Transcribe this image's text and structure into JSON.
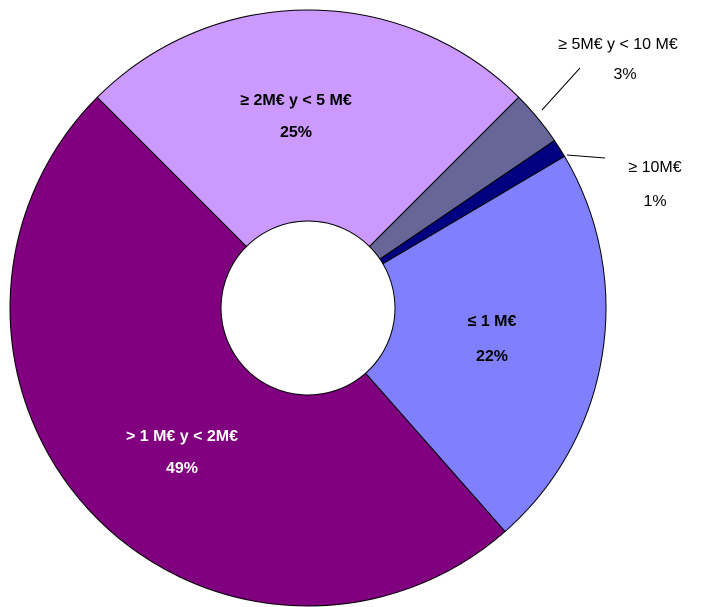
{
  "chart_data": {
    "type": "donut",
    "categories": [
      "≤ 1 M€",
      "> 1 M€ y < 2M€",
      "≥ 2M€ y < 5 M€",
      "≥ 5M€ y < 10 M€",
      "≥ 10M€"
    ],
    "values": [
      22,
      49,
      25,
      3,
      1
    ],
    "value_labels": [
      "22%",
      "49%",
      "25%",
      "3%",
      "1%"
    ],
    "colors": [
      "#8080ff",
      "#800080",
      "#cc99ff",
      "#666699",
      "#000080"
    ]
  }
}
